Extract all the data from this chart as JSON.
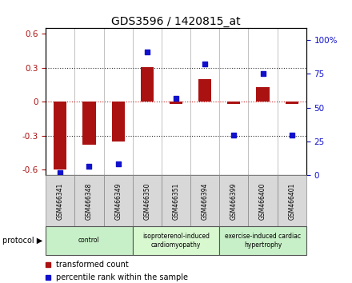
{
  "title": "GDS3596 / 1420815_at",
  "samples": [
    "GSM466341",
    "GSM466348",
    "GSM466349",
    "GSM466350",
    "GSM466351",
    "GSM466394",
    "GSM466399",
    "GSM466400",
    "GSM466401"
  ],
  "transformed_count": [
    -0.6,
    -0.38,
    -0.35,
    0.31,
    -0.02,
    0.2,
    -0.02,
    0.13,
    -0.02
  ],
  "percentile_rank": [
    2.0,
    7.0,
    8.5,
    91.0,
    57.0,
    82.0,
    30.0,
    75.0,
    30.0
  ],
  "ylim_left": [
    -0.65,
    0.65
  ],
  "ylim_right": [
    0,
    108.333
  ],
  "yticks_left": [
    -0.6,
    -0.3,
    0.0,
    0.3,
    0.6
  ],
  "yticks_right": [
    0,
    25,
    50,
    75,
    100
  ],
  "ytick_labels_left": [
    "-0.6",
    "-0.3",
    "0",
    "0.3",
    "0.6"
  ],
  "ytick_labels_right": [
    "0",
    "25",
    "50",
    "75",
    "100%"
  ],
  "bar_color": "#aa1111",
  "scatter_color": "#1111cc",
  "zero_line_color": "#cc2222",
  "dotted_line_color": "#333333",
  "groups": [
    {
      "label": "control",
      "start": 0,
      "end": 2,
      "color": "#c8f0c8"
    },
    {
      "label": "isoproterenol-induced\ncardiomyopathy",
      "start": 3,
      "end": 5,
      "color": "#d8f8d0"
    },
    {
      "label": "exercise-induced cardiac\nhypertrophy",
      "start": 6,
      "end": 8,
      "color": "#c8f0c8"
    }
  ],
  "protocol_label": "protocol",
  "legend_items": [
    {
      "label": "transformed count",
      "color": "#aa1111"
    },
    {
      "label": "percentile rank within the sample",
      "color": "#1111cc"
    }
  ]
}
